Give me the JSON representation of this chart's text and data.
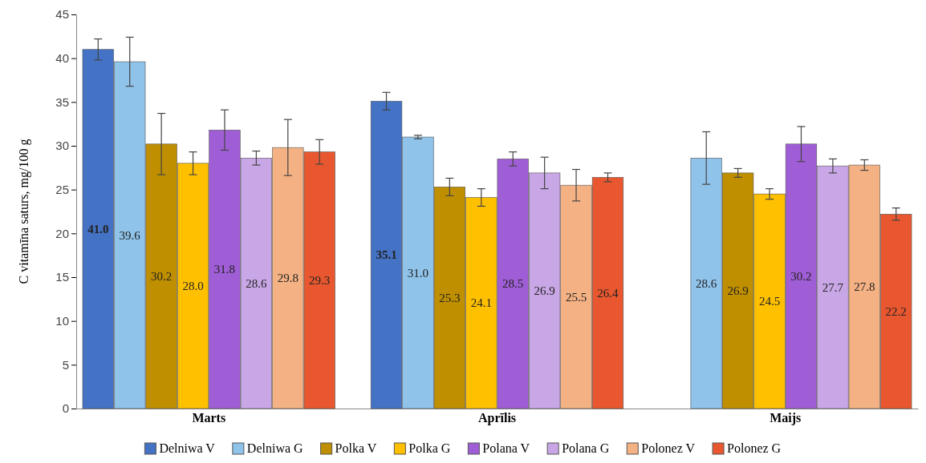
{
  "chart_data": {
    "type": "bar",
    "ylabel": "C vitamīna saturs, mg/100 g",
    "categories": [
      "Marts",
      "Aprīlis",
      "Maijs"
    ],
    "series": [
      {
        "name": "Delniwa V",
        "color": "#4472c4",
        "values": [
          41.0,
          35.1,
          null
        ],
        "errors": [
          1.2,
          1.0,
          null
        ],
        "value_labels": [
          "41.0",
          "35.1",
          null
        ]
      },
      {
        "name": "Delniwa G",
        "color": "#8fc3ea",
        "values": [
          39.6,
          31.0,
          28.6
        ],
        "errors": [
          2.8,
          0.2,
          3.0
        ],
        "value_labels": [
          "39.6",
          "31.0",
          "28.6"
        ]
      },
      {
        "name": "Polka V",
        "color": "#bf8f00",
        "values": [
          30.2,
          25.3,
          26.9
        ],
        "errors": [
          3.5,
          1.0,
          0.5
        ],
        "value_labels": [
          "30.2",
          "25.3",
          "26.9"
        ]
      },
      {
        "name": "Polka G",
        "color": "#ffc000",
        "values": [
          28.0,
          24.1,
          24.5
        ],
        "errors": [
          1.3,
          1.0,
          0.6
        ],
        "value_labels": [
          "28.0",
          "24.1",
          "24.5"
        ]
      },
      {
        "name": "Polana V",
        "color": "#a05ed6",
        "values": [
          31.8,
          28.5,
          30.2
        ],
        "errors": [
          2.3,
          0.8,
          2.0
        ],
        "value_labels": [
          "31.8",
          "28.5",
          "30.2"
        ]
      },
      {
        "name": "Polana G",
        "color": "#c9a7e6",
        "values": [
          28.6,
          26.9,
          27.7
        ],
        "errors": [
          0.8,
          1.8,
          0.8
        ],
        "value_labels": [
          "28.6",
          "26.9",
          "27.7"
        ]
      },
      {
        "name": "Polonez V",
        "color": "#f4b183",
        "values": [
          29.8,
          25.5,
          27.8
        ],
        "errors": [
          3.2,
          1.8,
          0.6
        ],
        "value_labels": [
          "29.8",
          "25.5",
          "27.8"
        ]
      },
      {
        "name": "Polonez G",
        "color": "#e8572f",
        "values": [
          29.3,
          26.4,
          22.2
        ],
        "errors": [
          1.4,
          0.5,
          0.7
        ],
        "value_labels": [
          "29.3",
          "26.4",
          "22.2"
        ]
      }
    ],
    "ylim": [
      0,
      45
    ],
    "yticks": [
      0,
      5,
      10,
      15,
      20,
      25,
      30,
      35,
      40,
      45
    ],
    "legend": "bottom"
  }
}
